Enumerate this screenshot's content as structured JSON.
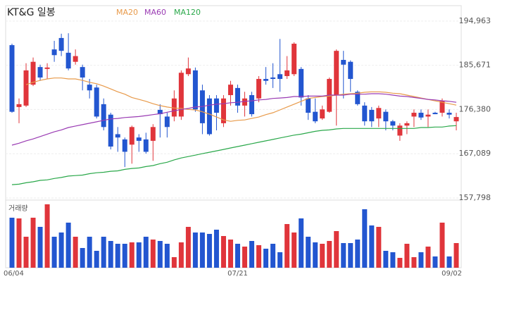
{
  "chart_data": {
    "type": "candlestick",
    "title": "KT&G 일봉",
    "volume_label": "거래량",
    "categories": [
      "06/04",
      null,
      null,
      null,
      null,
      null,
      null,
      null,
      null,
      null,
      null,
      null,
      null,
      null,
      null,
      null,
      null,
      null,
      null,
      null,
      null,
      null,
      null,
      null,
      null,
      null,
      null,
      null,
      null,
      null,
      null,
      null,
      "07/21",
      null,
      null,
      null,
      null,
      null,
      null,
      null,
      null,
      null,
      null,
      null,
      null,
      null,
      null,
      null,
      null,
      null,
      null,
      null,
      null,
      null,
      null,
      null,
      null,
      null,
      null,
      null,
      null,
      null,
      null,
      "09/02"
    ],
    "open": [
      189900,
      176900,
      177200,
      181600,
      185300,
      184900,
      189000,
      191400,
      188300,
      186400,
      185300,
      181600,
      181000,
      177500,
      175300,
      171200,
      170100,
      169000,
      170500,
      170100,
      169800,
      176300,
      174900,
      174900,
      174900,
      183800,
      184600,
      180400,
      178700,
      178700,
      173500,
      179400,
      180900,
      177200,
      179400,
      178700,
      182800,
      183100,
      183800,
      183400,
      183800,
      184900,
      178700,
      175900,
      174500,
      175900,
      179400,
      186800,
      186400,
      180100,
      177200,
      176300,
      174500,
      175900,
      173900,
      170900,
      173000,
      174900,
      175700,
      174900,
      175700,
      175700,
      175700,
      173900
    ],
    "high": [
      190200,
      178700,
      186100,
      187300,
      185800,
      186100,
      190800,
      192300,
      192400,
      189000,
      185800,
      182800,
      181600,
      178700,
      175700,
      172700,
      170500,
      173000,
      171200,
      171500,
      173300,
      177500,
      175700,
      180400,
      184600,
      187300,
      185200,
      181600,
      179400,
      179400,
      179400,
      182400,
      181600,
      180100,
      180100,
      183400,
      185300,
      186100,
      191200,
      187600,
      190500,
      185300,
      179400,
      178700,
      177200,
      183100,
      189000,
      188700,
      186700,
      180400,
      177900,
      176900,
      177200,
      176400,
      174200,
      173500,
      173900,
      176400,
      176400,
      176400,
      175900,
      178700,
      176400,
      175700
    ],
    "low": [
      175700,
      173500,
      176900,
      181300,
      182400,
      182800,
      186400,
      187600,
      184600,
      185800,
      180400,
      178700,
      174500,
      172000,
      168000,
      167500,
      164300,
      165000,
      167500,
      167100,
      165600,
      170500,
      170500,
      173900,
      174200,
      183400,
      175900,
      171200,
      170900,
      172000,
      172700,
      177200,
      175700,
      174900,
      174900,
      177900,
      181600,
      180900,
      180100,
      182800,
      183400,
      177200,
      174200,
      173500,
      174200,
      175700,
      173000,
      178700,
      180100,
      177200,
      173000,
      172700,
      172700,
      172000,
      172000,
      169800,
      171200,
      172700,
      174200,
      172700,
      175400,
      174900,
      174500,
      172000
    ],
    "close": [
      175900,
      177500,
      184600,
      186400,
      183100,
      185200,
      187800,
      188700,
      185000,
      187600,
      183100,
      180400,
      174900,
      172700,
      168600,
      170500,
      167500,
      172700,
      169800,
      167500,
      172700,
      175400,
      172700,
      178700,
      184100,
      185000,
      176400,
      173500,
      171200,
      175700,
      178700,
      181600,
      177200,
      178700,
      175400,
      182800,
      182400,
      182800,
      182800,
      184600,
      190200,
      178900,
      175700,
      173900,
      176400,
      182800,
      188700,
      185800,
      182800,
      177500,
      173900,
      173900,
      176700,
      173900,
      173000,
      173000,
      173500,
      175700,
      174700,
      175300,
      175400,
      178200,
      175300,
      174800
    ],
    "volume": [
      71,
      70,
      44,
      71,
      58,
      90,
      44,
      50,
      64,
      44,
      28,
      44,
      24,
      44,
      38,
      34,
      34,
      36,
      36,
      44,
      40,
      38,
      34,
      15,
      36,
      58,
      50,
      50,
      48,
      54,
      45,
      40,
      34,
      30,
      38,
      32,
      27,
      34,
      22,
      62,
      50,
      70,
      44,
      36,
      34,
      38,
      52,
      35,
      35,
      40,
      83,
      60,
      58,
      24,
      22,
      14,
      34,
      15,
      22,
      30,
      16,
      64,
      16,
      35
    ],
    "series": [
      {
        "name": "MA20",
        "color": "#e89a4a",
        "values": [
          null,
          null,
          181600,
          182100,
          182500,
          182800,
          183000,
          183000,
          182800,
          182800,
          182500,
          182100,
          181800,
          181300,
          180700,
          180100,
          179600,
          178900,
          178500,
          178100,
          177600,
          177200,
          176900,
          176700,
          176600,
          176400,
          176300,
          175900,
          175400,
          174800,
          174200,
          173900,
          174100,
          174200,
          174500,
          174800,
          175300,
          175700,
          176300,
          176900,
          177500,
          178100,
          178700,
          178900,
          179100,
          179200,
          179400,
          179600,
          179700,
          179800,
          180000,
          180100,
          180100,
          180000,
          179800,
          179700,
          179400,
          179100,
          178800,
          178500,
          178200,
          177900,
          177600,
          177300
        ]
      },
      {
        "name": "MA60",
        "color": "#9a3bb3",
        "values": [
          168900,
          169300,
          169800,
          170200,
          170700,
          171200,
          171700,
          172100,
          172600,
          172900,
          173200,
          173500,
          173800,
          174100,
          174400,
          174500,
          174700,
          174800,
          174900,
          175100,
          175300,
          175500,
          175800,
          176100,
          176400,
          176600,
          176900,
          177000,
          177300,
          177500,
          177600,
          177800,
          177900,
          178100,
          178200,
          178400,
          178500,
          178700,
          178800,
          178900,
          179100,
          179100,
          179200,
          179200,
          179200,
          179400,
          179400,
          179400,
          179600,
          179600,
          179600,
          179700,
          179700,
          179600,
          179400,
          179200,
          179100,
          178900,
          178700,
          178500,
          178400,
          178200,
          178100,
          177900
        ]
      },
      {
        "name": "MA120",
        "color": "#2aa84a",
        "values": [
          160600,
          160700,
          161000,
          161200,
          161500,
          161600,
          161900,
          162100,
          162400,
          162500,
          162600,
          162900,
          163100,
          163200,
          163400,
          163500,
          163800,
          164000,
          164100,
          164400,
          164600,
          165000,
          165300,
          165800,
          166200,
          166500,
          166800,
          167100,
          167400,
          167700,
          168000,
          168300,
          168600,
          168900,
          169200,
          169500,
          169800,
          170100,
          170400,
          170700,
          171000,
          171200,
          171500,
          171800,
          172000,
          172100,
          172300,
          172400,
          172400,
          172400,
          172400,
          172400,
          172400,
          172400,
          172400,
          172400,
          172400,
          172400,
          172600,
          172600,
          172700,
          172700,
          172900,
          173000
        ]
      }
    ],
    "up_color": "#e0353b",
    "down_color": "#2356d0",
    "ylim": [
      157798,
      197900
    ],
    "yticks": [
      {
        "value": 194963,
        "label": "194,963"
      },
      {
        "value": 185671,
        "label": "185,671"
      },
      {
        "value": 176380,
        "label": "176,380"
      },
      {
        "value": 167089,
        "label": "167,089"
      },
      {
        "value": 157798,
        "label": "157,798"
      }
    ],
    "grid": true
  }
}
